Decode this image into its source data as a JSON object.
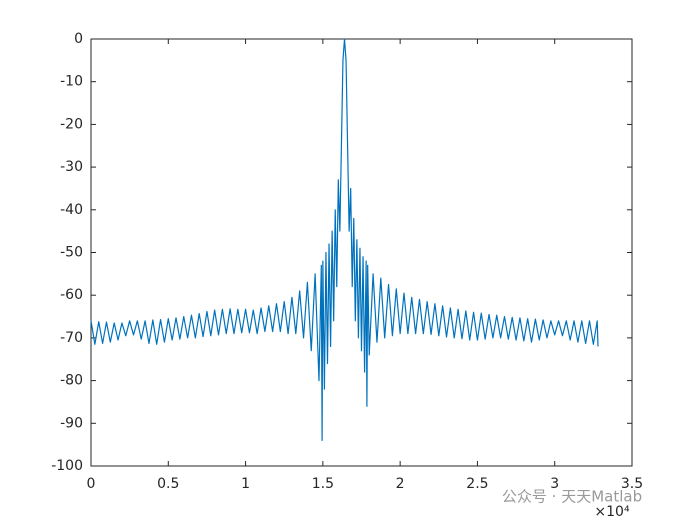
{
  "chart_data": {
    "type": "line",
    "x": [
      0,
      0.025,
      0.05,
      0.075,
      0.1,
      0.125,
      0.15,
      0.175,
      0.2,
      0.225,
      0.25,
      0.275,
      0.3,
      0.325,
      0.35,
      0.375,
      0.4,
      0.425,
      0.45,
      0.475,
      0.5,
      0.525,
      0.55,
      0.575,
      0.6,
      0.625,
      0.65,
      0.675,
      0.7,
      0.725,
      0.75,
      0.775,
      0.8,
      0.825,
      0.85,
      0.875,
      0.9,
      0.925,
      0.95,
      0.975,
      1.0,
      1.025,
      1.05,
      1.075,
      1.1,
      1.125,
      1.15,
      1.175,
      1.2,
      1.225,
      1.25,
      1.275,
      1.3,
      1.325,
      1.35,
      1.375,
      1.4,
      1.425,
      1.45,
      1.475,
      1.49,
      1.495,
      1.5,
      1.51,
      1.52,
      1.53,
      1.54,
      1.55,
      1.56,
      1.57,
      1.58,
      1.59,
      1.6,
      1.61,
      1.62,
      1.63,
      1.64,
      1.65,
      1.66,
      1.67,
      1.68,
      1.69,
      1.7,
      1.71,
      1.72,
      1.73,
      1.74,
      1.75,
      1.76,
      1.77,
      1.78,
      1.785,
      1.79,
      1.8,
      1.825,
      1.85,
      1.875,
      1.9,
      1.925,
      1.95,
      1.975,
      2.0,
      2.025,
      2.05,
      2.075,
      2.1,
      2.125,
      2.15,
      2.175,
      2.2,
      2.225,
      2.25,
      2.275,
      2.3,
      2.325,
      2.35,
      2.375,
      2.4,
      2.425,
      2.45,
      2.475,
      2.5,
      2.525,
      2.55,
      2.575,
      2.6,
      2.625,
      2.65,
      2.675,
      2.7,
      2.725,
      2.75,
      2.775,
      2.8,
      2.825,
      2.85,
      2.875,
      2.9,
      2.925,
      2.95,
      2.975,
      3.0,
      3.025,
      3.05,
      3.075,
      3.1,
      3.125,
      3.15,
      3.175,
      3.2,
      3.225,
      3.25,
      3.275,
      3.28
    ],
    "values": [
      -66,
      -71.5,
      -66.2,
      -71.3,
      -66.3,
      -71,
      -66.5,
      -70.5,
      -66.5,
      -69.5,
      -66,
      -69.3,
      -66,
      -70.3,
      -66,
      -71.3,
      -65.8,
      -71.5,
      -65.7,
      -71,
      -65.5,
      -70.5,
      -65.3,
      -70.3,
      -65,
      -70,
      -64.7,
      -70,
      -64.3,
      -69.7,
      -63.8,
      -69.5,
      -63.5,
      -69.3,
      -63.3,
      -69,
      -63.2,
      -69,
      -63.3,
      -68.8,
      -63.3,
      -68.8,
      -63.5,
      -69,
      -63,
      -68.5,
      -62.5,
      -68.5,
      -62,
      -68.5,
      -61.5,
      -69,
      -60.5,
      -69,
      -59,
      -70,
      -57,
      -73,
      -55,
      -80,
      -53,
      -94,
      -52,
      -82,
      -50,
      -76,
      -48,
      -72,
      -45,
      -66,
      -40,
      -58,
      -33,
      -45,
      -25,
      -5,
      0,
      -5,
      -25,
      -45,
      -35,
      -58,
      -42,
      -66,
      -47,
      -70,
      -49,
      -73,
      -51,
      -78,
      -52,
      -86,
      -53,
      -74,
      -55,
      -71,
      -56,
      -70,
      -57.5,
      -69.5,
      -58.5,
      -69,
      -59.5,
      -69,
      -60.5,
      -69,
      -61,
      -69,
      -61.5,
      -69.2,
      -62,
      -69.5,
      -62.5,
      -69.8,
      -63,
      -70,
      -63.3,
      -70.2,
      -63.7,
      -70.5,
      -64,
      -70.5,
      -64.2,
      -70.3,
      -64.5,
      -70,
      -64.7,
      -70,
      -65,
      -70.3,
      -65.2,
      -70.5,
      -65.3,
      -70.7,
      -65.5,
      -71,
      -65.6,
      -70.5,
      -65.8,
      -70,
      -66,
      -69.3,
      -66,
      -69.5,
      -66,
      -70.5,
      -66,
      -71,
      -66,
      -71.3,
      -66,
      -71.5,
      -66,
      -72
    ],
    "color": "#0072bd",
    "xlim": [
      0,
      3.5
    ],
    "xticks": [
      0,
      0.5,
      1,
      1.5,
      2,
      2.5,
      3,
      3.5
    ],
    "ylim": [
      -100,
      0
    ],
    "yticks": [
      -100,
      -90,
      -80,
      -70,
      -60,
      -50,
      -40,
      -30,
      -20,
      -10,
      0
    ],
    "x_exponent": "×10⁴",
    "watermark": "公众号 · 天天Matlab"
  }
}
